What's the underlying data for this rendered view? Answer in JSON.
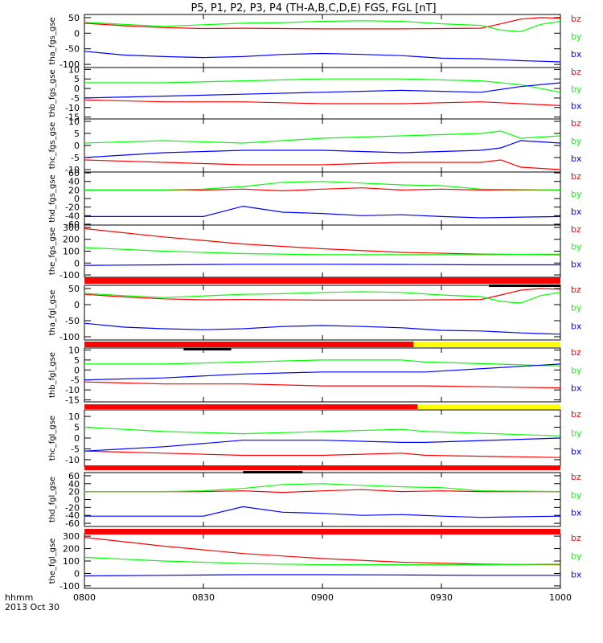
{
  "title": "P5, P1, P2, P3, P4 (TH-A,B,C,D,E) FGS, FGL [nT]",
  "footer": {
    "axis_name": "hhmm",
    "date": "2013 Oct 30"
  },
  "colors": {
    "bz": "#ff0000",
    "by": "#00ff00",
    "bx": "#0000ff",
    "bar_red": "#ff0000",
    "bar_yellow": "#ffff00",
    "bar_black": "#000000"
  },
  "chart_data": [
    {
      "type": "line",
      "ylabel": "tha_fgs_gse",
      "ylim": [
        -110,
        60
      ],
      "yticks": [
        50,
        0,
        -50,
        -100
      ],
      "x_range": [
        0,
        120
      ],
      "xticks": [
        "0800",
        "0830",
        "0900",
        "0930",
        "1000"
      ],
      "series": [
        {
          "name": "bz",
          "x": [
            0,
            10,
            20,
            30,
            40,
            50,
            60,
            70,
            80,
            90,
            100,
            105,
            110,
            115,
            120
          ],
          "values": [
            32,
            24,
            18,
            15,
            16,
            15,
            14,
            14,
            14,
            15,
            16,
            30,
            45,
            50,
            48
          ]
        },
        {
          "name": "by",
          "x": [
            0,
            10,
            20,
            30,
            40,
            50,
            60,
            70,
            80,
            90,
            100,
            105,
            110,
            115,
            120
          ],
          "values": [
            35,
            28,
            22,
            27,
            32,
            34,
            38,
            40,
            38,
            30,
            25,
            10,
            5,
            28,
            38
          ]
        },
        {
          "name": "bx",
          "x": [
            0,
            10,
            20,
            30,
            40,
            50,
            60,
            70,
            80,
            90,
            100,
            105,
            110,
            115,
            120
          ],
          "values": [
            -58,
            -70,
            -75,
            -78,
            -75,
            -68,
            -65,
            -68,
            -72,
            -80,
            -82,
            -85,
            -88,
            -90,
            -92
          ]
        }
      ]
    },
    {
      "type": "line",
      "ylabel": "thb_fgs_gse",
      "ylim": [
        -16,
        11
      ],
      "yticks": [
        10,
        5,
        0,
        -5,
        -10,
        -15
      ],
      "x_range": [
        0,
        120
      ],
      "xticks": [
        "0800",
        "0830",
        "0900",
        "0930",
        "1000"
      ],
      "series": [
        {
          "name": "bz",
          "x": [
            0,
            20,
            40,
            60,
            80,
            100,
            110,
            120
          ],
          "values": [
            -6,
            -7,
            -7,
            -8,
            -8,
            -7,
            -8,
            -9
          ]
        },
        {
          "name": "by",
          "x": [
            0,
            20,
            40,
            60,
            80,
            100,
            110,
            120
          ],
          "values": [
            3,
            3,
            4,
            5,
            5,
            4,
            2,
            -2
          ]
        },
        {
          "name": "bx",
          "x": [
            0,
            20,
            40,
            60,
            80,
            100,
            110,
            120
          ],
          "values": [
            -5,
            -4,
            -3,
            -2,
            -1,
            -2,
            1,
            3
          ]
        }
      ]
    },
    {
      "type": "line",
      "ylabel": "thc_fgs_gse",
      "ylim": [
        -11,
        11
      ],
      "yticks": [
        10,
        5,
        0,
        -5,
        -10
      ],
      "x_range": [
        0,
        120
      ],
      "xticks": [
        "0800",
        "0830",
        "0900",
        "0930",
        "1000"
      ],
      "series": [
        {
          "name": "bz",
          "x": [
            0,
            20,
            40,
            60,
            80,
            100,
            105,
            110,
            120
          ],
          "values": [
            -6,
            -7,
            -8,
            -8,
            -7,
            -7,
            -6,
            -9,
            -10
          ]
        },
        {
          "name": "by",
          "x": [
            0,
            20,
            40,
            60,
            80,
            100,
            105,
            110,
            120
          ],
          "values": [
            1,
            2,
            1,
            3,
            4,
            5,
            6,
            3,
            4
          ]
        },
        {
          "name": "bx",
          "x": [
            0,
            20,
            40,
            60,
            80,
            100,
            105,
            110,
            120
          ],
          "values": [
            -5,
            -3,
            -2,
            -2,
            -3,
            -2,
            -1,
            2,
            1
          ]
        }
      ]
    },
    {
      "type": "line",
      "ylabel": "thd_fgs_gse",
      "ylim": [
        -62,
        62
      ],
      "yticks": [
        60,
        40,
        20,
        0,
        -20,
        -40,
        -60
      ],
      "x_range": [
        0,
        120
      ],
      "xticks": [
        "0800",
        "0830",
        "0900",
        "0930",
        "1000"
      ],
      "series": [
        {
          "name": "bz",
          "x": [
            0,
            20,
            30,
            40,
            50,
            60,
            70,
            80,
            90,
            100,
            120
          ],
          "values": [
            20,
            20,
            20,
            22,
            18,
            22,
            25,
            20,
            22,
            20,
            20
          ]
        },
        {
          "name": "by",
          "x": [
            0,
            20,
            30,
            40,
            50,
            60,
            70,
            80,
            90,
            100,
            120
          ],
          "values": [
            20,
            20,
            22,
            28,
            38,
            40,
            36,
            32,
            30,
            22,
            20
          ]
        },
        {
          "name": "bx",
          "x": [
            0,
            20,
            30,
            40,
            50,
            60,
            70,
            80,
            90,
            100,
            120
          ],
          "values": [
            -42,
            -42,
            -42,
            -18,
            -32,
            -35,
            -40,
            -38,
            -42,
            -45,
            -42
          ]
        }
      ]
    },
    {
      "type": "line",
      "ylabel": "the_fgs_gse",
      "ylim": [
        -120,
        320
      ],
      "yticks": [
        300,
        200,
        100,
        0,
        -100
      ],
      "x_range": [
        0,
        120
      ],
      "xticks": [
        "0800",
        "0830",
        "0900",
        "0930",
        "1000"
      ],
      "series": [
        {
          "name": "bz",
          "x": [
            0,
            20,
            40,
            60,
            80,
            100,
            120
          ],
          "values": [
            290,
            220,
            160,
            120,
            90,
            75,
            70
          ]
        },
        {
          "name": "by",
          "x": [
            0,
            20,
            40,
            60,
            80,
            100,
            120
          ],
          "values": [
            130,
            100,
            80,
            70,
            70,
            70,
            75
          ]
        },
        {
          "name": "bx",
          "x": [
            0,
            20,
            40,
            60,
            80,
            100,
            120
          ],
          "values": [
            -20,
            -15,
            -10,
            -10,
            -12,
            -15,
            -15
          ]
        }
      ]
    },
    {
      "type": "line",
      "ylabel": "tha_fgl_gse",
      "ylim": [
        -110,
        60
      ],
      "yticks": [
        50,
        0,
        -50,
        -100
      ],
      "x_range": [
        0,
        120
      ],
      "xticks": [
        "0800",
        "0830",
        "0900",
        "0930",
        "1000"
      ],
      "series": [
        {
          "name": "bz",
          "x": [
            0,
            10,
            20,
            30,
            40,
            50,
            60,
            70,
            80,
            90,
            100,
            105,
            110,
            115,
            120
          ],
          "values": [
            32,
            24,
            18,
            15,
            16,
            15,
            14,
            14,
            14,
            15,
            16,
            30,
            45,
            50,
            48
          ]
        },
        {
          "name": "by",
          "x": [
            0,
            10,
            20,
            30,
            40,
            50,
            60,
            70,
            80,
            90,
            100,
            105,
            110,
            115,
            120
          ],
          "values": [
            35,
            28,
            22,
            27,
            32,
            34,
            38,
            40,
            38,
            30,
            25,
            10,
            5,
            28,
            38
          ]
        },
        {
          "name": "bx",
          "x": [
            0,
            10,
            20,
            30,
            40,
            50,
            60,
            70,
            80,
            90,
            100,
            105,
            110,
            115,
            120
          ],
          "values": [
            -58,
            -70,
            -75,
            -78,
            -75,
            -68,
            -65,
            -68,
            -72,
            -80,
            -82,
            -85,
            -88,
            -90,
            -92
          ]
        }
      ]
    },
    {
      "type": "line",
      "ylabel": "thb_fgl_gse",
      "ylim": [
        -16,
        11
      ],
      "yticks": [
        10,
        5,
        0,
        -5,
        -10,
        -15
      ],
      "x_range": [
        0,
        120
      ],
      "xticks": [
        "0800",
        "0830",
        "0900",
        "0930",
        "1000"
      ],
      "series": [
        {
          "name": "bz",
          "x": [
            0,
            20,
            40,
            60,
            80,
            86,
            120
          ],
          "values": [
            -6,
            -7,
            -7,
            -8,
            -8,
            -8,
            -9
          ]
        },
        {
          "name": "by",
          "x": [
            0,
            20,
            40,
            60,
            80,
            86,
            120
          ],
          "values": [
            3,
            3,
            4,
            5,
            5,
            4,
            2
          ]
        },
        {
          "name": "bx",
          "x": [
            0,
            20,
            40,
            60,
            80,
            86,
            120
          ],
          "values": [
            -5,
            -4,
            -2,
            -1,
            -1,
            -1,
            3
          ]
        }
      ]
    },
    {
      "type": "line",
      "ylabel": "thc_fgl_gse",
      "ylim": [
        -13,
        13
      ],
      "yticks": [
        10,
        5,
        0,
        -5,
        -10
      ],
      "x_range": [
        0,
        120
      ],
      "xticks": [
        "0800",
        "0830",
        "0900",
        "0930",
        "1000"
      ],
      "series": [
        {
          "name": "bz",
          "x": [
            0,
            20,
            40,
            60,
            80,
            86,
            120
          ],
          "values": [
            -6,
            -7,
            -8,
            -8,
            -7,
            -8,
            -9
          ]
        },
        {
          "name": "by",
          "x": [
            0,
            20,
            40,
            60,
            80,
            86,
            120
          ],
          "values": [
            5,
            3,
            2,
            3,
            4,
            3,
            1
          ]
        },
        {
          "name": "bx",
          "x": [
            0,
            20,
            40,
            60,
            80,
            86,
            120
          ],
          "values": [
            -6,
            -4,
            -1,
            -1,
            -2,
            -2,
            0
          ]
        }
      ]
    },
    {
      "type": "line",
      "ylabel": "thd_fgl_gse",
      "ylim": [
        -68,
        68
      ],
      "yticks": [
        60,
        40,
        20,
        0,
        -20,
        -40,
        -60
      ],
      "x_range": [
        0,
        120
      ],
      "xticks": [
        "0800",
        "0830",
        "0900",
        "0930",
        "1000"
      ],
      "series": [
        {
          "name": "bz",
          "x": [
            0,
            20,
            30,
            40,
            50,
            60,
            70,
            80,
            90,
            100,
            120
          ],
          "values": [
            20,
            20,
            20,
            22,
            18,
            22,
            25,
            20,
            22,
            20,
            20
          ]
        },
        {
          "name": "by",
          "x": [
            0,
            20,
            30,
            40,
            50,
            60,
            70,
            80,
            90,
            100,
            120
          ],
          "values": [
            20,
            20,
            22,
            28,
            38,
            40,
            36,
            32,
            30,
            22,
            20
          ]
        },
        {
          "name": "bx",
          "x": [
            0,
            20,
            30,
            40,
            50,
            60,
            70,
            80,
            90,
            100,
            120
          ],
          "values": [
            -42,
            -42,
            -42,
            -18,
            -32,
            -35,
            -40,
            -38,
            -42,
            -45,
            -42
          ]
        }
      ]
    },
    {
      "type": "line",
      "ylabel": "the_fgl_gse",
      "ylim": [
        -120,
        320
      ],
      "yticks": [
        300,
        200,
        100,
        0,
        -100
      ],
      "x_range": [
        0,
        120
      ],
      "xticks": [
        "0800",
        "0830",
        "0900",
        "0930",
        "1000"
      ],
      "series": [
        {
          "name": "bz",
          "x": [
            0,
            20,
            40,
            60,
            80,
            100,
            120
          ],
          "values": [
            290,
            220,
            160,
            120,
            90,
            75,
            70
          ]
        },
        {
          "name": "by",
          "x": [
            0,
            20,
            40,
            60,
            80,
            100,
            120
          ],
          "values": [
            130,
            100,
            80,
            70,
            70,
            70,
            75
          ]
        },
        {
          "name": "bx",
          "x": [
            0,
            20,
            40,
            60,
            80,
            100,
            120
          ],
          "values": [
            -20,
            -15,
            -10,
            -10,
            -12,
            -15,
            -15
          ]
        }
      ]
    }
  ],
  "status_bars": [
    {
      "segments": [
        {
          "from": 0,
          "to": 120,
          "color": "bar_red"
        }
      ],
      "black_marks": [
        {
          "from": 102,
          "to": 120
        }
      ]
    },
    {
      "segments": [
        {
          "from": 0,
          "to": 83,
          "color": "bar_red"
        },
        {
          "from": 83,
          "to": 120,
          "color": "bar_yellow"
        }
      ],
      "black_marks": [
        {
          "from": 25,
          "to": 37
        }
      ]
    },
    {
      "segments": [
        {
          "from": 0,
          "to": 84,
          "color": "bar_red"
        },
        {
          "from": 84,
          "to": 120,
          "color": "bar_yellow"
        }
      ],
      "black_marks": []
    },
    {
      "segments": [
        {
          "from": 0,
          "to": 120,
          "color": "bar_red"
        }
      ],
      "black_marks": [
        {
          "from": 40,
          "to": 55
        }
      ]
    },
    {
      "segments": [
        {
          "from": 0,
          "to": 120,
          "color": "bar_red"
        }
      ],
      "black_marks": []
    }
  ]
}
